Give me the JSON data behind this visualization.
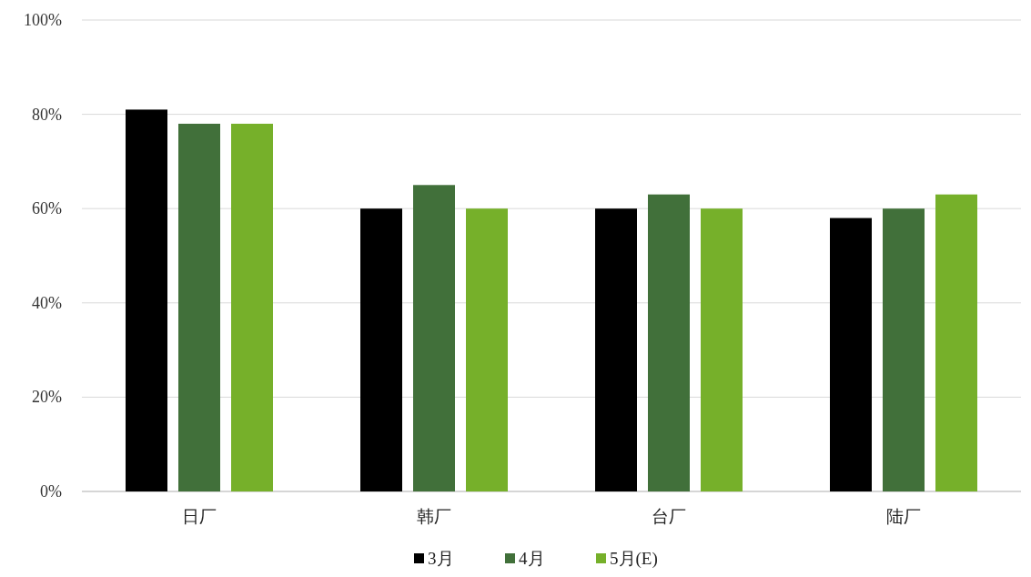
{
  "chart_data": {
    "type": "bar",
    "categories": [
      "日厂",
      "韩厂",
      "台厂",
      "陆厂"
    ],
    "series": [
      {
        "name": "3月",
        "color": "#000000",
        "values": [
          81,
          60,
          60,
          58
        ]
      },
      {
        "name": "4月",
        "color": "#41703a",
        "values": [
          78,
          65,
          63,
          60
        ]
      },
      {
        "name": "5月(E)",
        "color": "#76b02a",
        "values": [
          78,
          60,
          60,
          63
        ]
      }
    ],
    "ylim": [
      0,
      100
    ],
    "yticks": [
      {
        "value": 0,
        "label": "0%"
      },
      {
        "value": 20,
        "label": "20%"
      },
      {
        "value": 40,
        "label": "40%"
      },
      {
        "value": 60,
        "label": "60%"
      },
      {
        "value": 80,
        "label": "80%"
      },
      {
        "value": 100,
        "label": "100%"
      }
    ],
    "grid": "y",
    "legend": "bottom"
  }
}
